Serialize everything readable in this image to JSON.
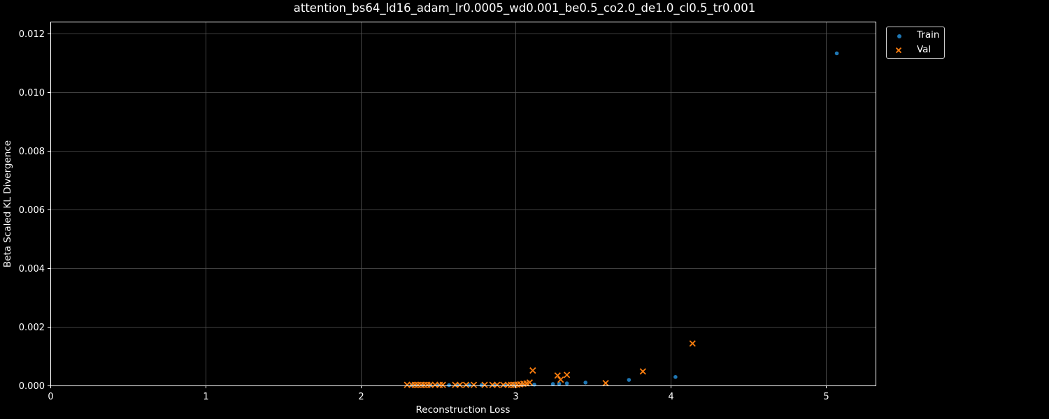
{
  "chart_data": {
    "type": "scatter",
    "title": "attention_bs64_ld16_adam_lr0.0005_wd0.001_be0.5_co2.0_de1.0_cl0.5_tr0.001",
    "xlabel": "Reconstruction Loss",
    "ylabel": "Beta Scaled KL Divergence",
    "xlim": [
      0,
      5.32
    ],
    "ylim": [
      0,
      0.0124
    ],
    "xticks": [
      "0",
      "1",
      "2",
      "3",
      "4",
      "5"
    ],
    "yticks": [
      "0.000",
      "0.002",
      "0.004",
      "0.006",
      "0.008",
      "0.010",
      "0.012"
    ],
    "grid": true,
    "legend_position": "upper-left outside (right of plot)",
    "colors": {
      "background": "#000000",
      "train": "#1f77b4",
      "val": "#ff7f0e",
      "grid": "#555555",
      "axes": "#ffffff"
    },
    "series": [
      {
        "name": "Train",
        "marker": "dot",
        "x": [
          2.33,
          2.36,
          2.4,
          2.45,
          2.5,
          2.57,
          2.62,
          2.7,
          2.78,
          2.86,
          2.93,
          2.99,
          3.04,
          3.12,
          3.24,
          3.28,
          3.33,
          3.45,
          3.73,
          4.03,
          5.07
        ],
        "y": [
          1e-05,
          1e-05,
          1e-05,
          1e-05,
          1e-05,
          1e-05,
          1e-05,
          1e-05,
          1e-05,
          1e-05,
          1e-05,
          2e-05,
          2e-05,
          3e-05,
          5e-05,
          6e-05,
          7e-05,
          0.0001,
          0.00019,
          0.00029,
          0.01132
        ]
      },
      {
        "name": "Val",
        "marker": "x",
        "x": [
          2.3,
          2.33,
          2.35,
          2.37,
          2.39,
          2.41,
          2.43,
          2.45,
          2.48,
          2.51,
          2.53,
          2.61,
          2.64,
          2.68,
          2.73,
          2.8,
          2.85,
          2.88,
          2.92,
          2.95,
          2.97,
          2.99,
          3.01,
          3.03,
          3.05,
          3.07,
          3.09,
          3.11,
          3.27,
          3.29,
          3.33,
          3.58,
          3.82,
          4.14
        ],
        "y": [
          2e-05,
          2e-05,
          2e-05,
          2e-05,
          2e-05,
          2e-05,
          2e-05,
          2e-05,
          2e-05,
          2e-05,
          2e-05,
          2e-05,
          2e-05,
          2e-05,
          2e-05,
          2e-05,
          2e-05,
          2e-05,
          2e-05,
          2e-05,
          2e-05,
          2e-05,
          3e-05,
          4e-05,
          6e-05,
          7e-05,
          0.0001,
          0.00051,
          0.00034,
          0.0002,
          0.00036,
          8e-05,
          0.00048,
          0.00143
        ]
      }
    ]
  }
}
